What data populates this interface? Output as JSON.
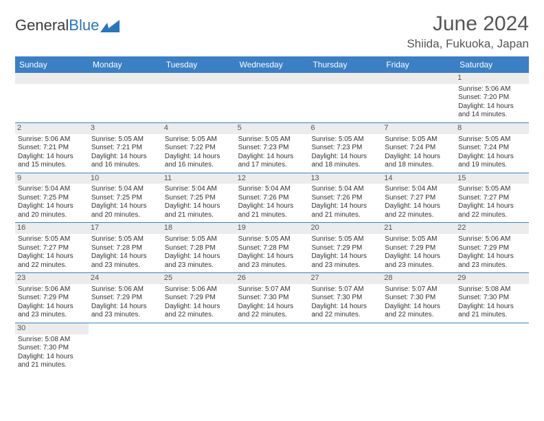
{
  "logo": {
    "text_general": "General",
    "text_blue": "Blue"
  },
  "header": {
    "month_title": "June 2024",
    "location": "Shiida, Fukuoka, Japan"
  },
  "colors": {
    "header_bg": "#3b7fc4",
    "daynum_bg": "#ececec",
    "text": "#333333",
    "accent": "#2a75bb"
  },
  "day_names": [
    "Sunday",
    "Monday",
    "Tuesday",
    "Wednesday",
    "Thursday",
    "Friday",
    "Saturday"
  ],
  "weeks": [
    [
      null,
      null,
      null,
      null,
      null,
      null,
      {
        "n": "1",
        "sr": "Sunrise: 5:06 AM",
        "ss": "Sunset: 7:20 PM",
        "dl1": "Daylight: 14 hours",
        "dl2": "and 14 minutes."
      }
    ],
    [
      {
        "n": "2",
        "sr": "Sunrise: 5:06 AM",
        "ss": "Sunset: 7:21 PM",
        "dl1": "Daylight: 14 hours",
        "dl2": "and 15 minutes."
      },
      {
        "n": "3",
        "sr": "Sunrise: 5:05 AM",
        "ss": "Sunset: 7:21 PM",
        "dl1": "Daylight: 14 hours",
        "dl2": "and 16 minutes."
      },
      {
        "n": "4",
        "sr": "Sunrise: 5:05 AM",
        "ss": "Sunset: 7:22 PM",
        "dl1": "Daylight: 14 hours",
        "dl2": "and 16 minutes."
      },
      {
        "n": "5",
        "sr": "Sunrise: 5:05 AM",
        "ss": "Sunset: 7:23 PM",
        "dl1": "Daylight: 14 hours",
        "dl2": "and 17 minutes."
      },
      {
        "n": "6",
        "sr": "Sunrise: 5:05 AM",
        "ss": "Sunset: 7:23 PM",
        "dl1": "Daylight: 14 hours",
        "dl2": "and 18 minutes."
      },
      {
        "n": "7",
        "sr": "Sunrise: 5:05 AM",
        "ss": "Sunset: 7:24 PM",
        "dl1": "Daylight: 14 hours",
        "dl2": "and 18 minutes."
      },
      {
        "n": "8",
        "sr": "Sunrise: 5:05 AM",
        "ss": "Sunset: 7:24 PM",
        "dl1": "Daylight: 14 hours",
        "dl2": "and 19 minutes."
      }
    ],
    [
      {
        "n": "9",
        "sr": "Sunrise: 5:04 AM",
        "ss": "Sunset: 7:25 PM",
        "dl1": "Daylight: 14 hours",
        "dl2": "and 20 minutes."
      },
      {
        "n": "10",
        "sr": "Sunrise: 5:04 AM",
        "ss": "Sunset: 7:25 PM",
        "dl1": "Daylight: 14 hours",
        "dl2": "and 20 minutes."
      },
      {
        "n": "11",
        "sr": "Sunrise: 5:04 AM",
        "ss": "Sunset: 7:25 PM",
        "dl1": "Daylight: 14 hours",
        "dl2": "and 21 minutes."
      },
      {
        "n": "12",
        "sr": "Sunrise: 5:04 AM",
        "ss": "Sunset: 7:26 PM",
        "dl1": "Daylight: 14 hours",
        "dl2": "and 21 minutes."
      },
      {
        "n": "13",
        "sr": "Sunrise: 5:04 AM",
        "ss": "Sunset: 7:26 PM",
        "dl1": "Daylight: 14 hours",
        "dl2": "and 21 minutes."
      },
      {
        "n": "14",
        "sr": "Sunrise: 5:04 AM",
        "ss": "Sunset: 7:27 PM",
        "dl1": "Daylight: 14 hours",
        "dl2": "and 22 minutes."
      },
      {
        "n": "15",
        "sr": "Sunrise: 5:05 AM",
        "ss": "Sunset: 7:27 PM",
        "dl1": "Daylight: 14 hours",
        "dl2": "and 22 minutes."
      }
    ],
    [
      {
        "n": "16",
        "sr": "Sunrise: 5:05 AM",
        "ss": "Sunset: 7:27 PM",
        "dl1": "Daylight: 14 hours",
        "dl2": "and 22 minutes."
      },
      {
        "n": "17",
        "sr": "Sunrise: 5:05 AM",
        "ss": "Sunset: 7:28 PM",
        "dl1": "Daylight: 14 hours",
        "dl2": "and 23 minutes."
      },
      {
        "n": "18",
        "sr": "Sunrise: 5:05 AM",
        "ss": "Sunset: 7:28 PM",
        "dl1": "Daylight: 14 hours",
        "dl2": "and 23 minutes."
      },
      {
        "n": "19",
        "sr": "Sunrise: 5:05 AM",
        "ss": "Sunset: 7:28 PM",
        "dl1": "Daylight: 14 hours",
        "dl2": "and 23 minutes."
      },
      {
        "n": "20",
        "sr": "Sunrise: 5:05 AM",
        "ss": "Sunset: 7:29 PM",
        "dl1": "Daylight: 14 hours",
        "dl2": "and 23 minutes."
      },
      {
        "n": "21",
        "sr": "Sunrise: 5:05 AM",
        "ss": "Sunset: 7:29 PM",
        "dl1": "Daylight: 14 hours",
        "dl2": "and 23 minutes."
      },
      {
        "n": "22",
        "sr": "Sunrise: 5:06 AM",
        "ss": "Sunset: 7:29 PM",
        "dl1": "Daylight: 14 hours",
        "dl2": "and 23 minutes."
      }
    ],
    [
      {
        "n": "23",
        "sr": "Sunrise: 5:06 AM",
        "ss": "Sunset: 7:29 PM",
        "dl1": "Daylight: 14 hours",
        "dl2": "and 23 minutes."
      },
      {
        "n": "24",
        "sr": "Sunrise: 5:06 AM",
        "ss": "Sunset: 7:29 PM",
        "dl1": "Daylight: 14 hours",
        "dl2": "and 23 minutes."
      },
      {
        "n": "25",
        "sr": "Sunrise: 5:06 AM",
        "ss": "Sunset: 7:29 PM",
        "dl1": "Daylight: 14 hours",
        "dl2": "and 22 minutes."
      },
      {
        "n": "26",
        "sr": "Sunrise: 5:07 AM",
        "ss": "Sunset: 7:30 PM",
        "dl1": "Daylight: 14 hours",
        "dl2": "and 22 minutes."
      },
      {
        "n": "27",
        "sr": "Sunrise: 5:07 AM",
        "ss": "Sunset: 7:30 PM",
        "dl1": "Daylight: 14 hours",
        "dl2": "and 22 minutes."
      },
      {
        "n": "28",
        "sr": "Sunrise: 5:07 AM",
        "ss": "Sunset: 7:30 PM",
        "dl1": "Daylight: 14 hours",
        "dl2": "and 22 minutes."
      },
      {
        "n": "29",
        "sr": "Sunrise: 5:08 AM",
        "ss": "Sunset: 7:30 PM",
        "dl1": "Daylight: 14 hours",
        "dl2": "and 21 minutes."
      }
    ],
    [
      {
        "n": "30",
        "sr": "Sunrise: 5:08 AM",
        "ss": "Sunset: 7:30 PM",
        "dl1": "Daylight: 14 hours",
        "dl2": "and 21 minutes."
      },
      null,
      null,
      null,
      null,
      null,
      null
    ]
  ]
}
